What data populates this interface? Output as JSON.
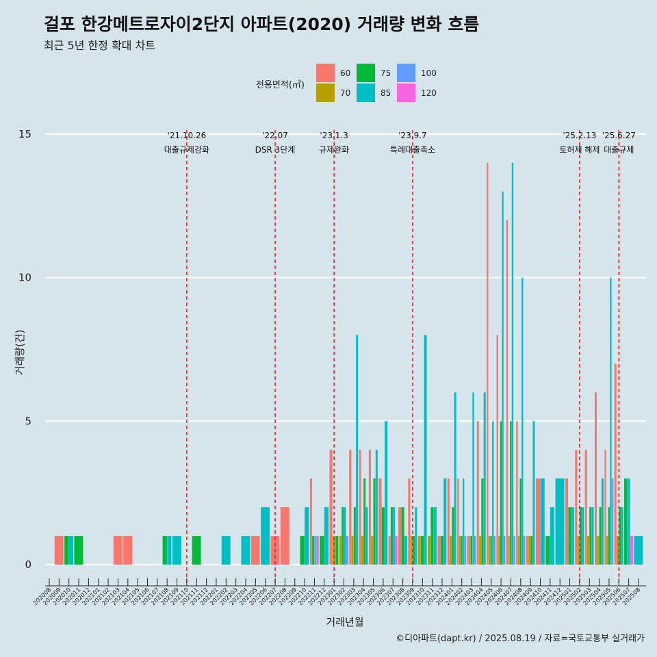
{
  "title": "걸포 한강메트로자이2단지 아파트(2020) 거래량 변화 흐름",
  "subtitle": "최근 5년 한정 확대 차트",
  "caption": "©디아파트(dapt.kr) / 2025.08.19 / 자료=국토교통부 실거래가",
  "colors": {
    "background": "#d6e4eb",
    "gridline": "#ffffff",
    "event_line": "#e41a1c",
    "s60": "#f8766d",
    "s70": "#b79f00",
    "s75": "#00ba38",
    "s85": "#00bfc4",
    "s100": "#619cff",
    "s120": "#f564e3"
  },
  "chart_data": {
    "type": "bar",
    "title": "걸포 한강메트로자이2단지 아파트(2020) 거래량 변화 흐름",
    "subtitle": "최근 5년 한정 확대 차트",
    "xlabel": "거래년월",
    "ylabel": "거래량(건)",
    "ylim": [
      0,
      15
    ],
    "yticks": [
      0,
      5,
      10,
      15
    ],
    "grid": true,
    "legend": {
      "title": "전용면적(㎡)",
      "position": "top",
      "entries": [
        "60",
        "70",
        "75",
        "85",
        "100",
        "120"
      ]
    },
    "categories": [
      "202008",
      "202009",
      "202010",
      "202011",
      "202012",
      "202101",
      "202102",
      "202103",
      "202104",
      "202105",
      "202106",
      "202107",
      "202108",
      "202109",
      "202110",
      "202111",
      "202112",
      "202201",
      "202202",
      "202203",
      "202204",
      "202205",
      "202206",
      "202207",
      "202208",
      "202209",
      "202210",
      "202211",
      "202212",
      "202301",
      "202302",
      "202303",
      "202304",
      "202305",
      "202306",
      "202307",
      "202308",
      "202309",
      "202310",
      "202311",
      "202312",
      "202401",
      "202402",
      "202403",
      "202404",
      "202405",
      "202406",
      "202407",
      "202408",
      "202409",
      "202410",
      "202411",
      "202412",
      "202501",
      "202502",
      "202503",
      "202504",
      "202505",
      "202506",
      "202507",
      "202508"
    ],
    "series": [
      {
        "name": "60",
        "values": [
          0,
          1,
          0,
          0,
          0,
          0,
          0,
          1,
          1,
          0,
          0,
          0,
          0,
          0,
          0,
          0,
          0,
          0,
          0,
          0,
          0,
          1,
          0,
          1,
          2,
          0,
          0,
          3,
          0,
          4,
          0,
          4,
          4,
          4,
          3,
          1,
          2,
          3,
          0,
          0,
          1,
          3,
          3,
          1,
          5,
          14,
          8,
          12,
          5,
          1,
          3,
          0,
          0,
          3,
          4,
          4,
          6,
          4,
          7,
          0,
          0
        ]
      },
      {
        "name": "70",
        "values": [
          0,
          0,
          0,
          0,
          0,
          0,
          0,
          0,
          0,
          0,
          0,
          0,
          0,
          0,
          0,
          0,
          0,
          0,
          0,
          0,
          0,
          0,
          0,
          0,
          0,
          0,
          0,
          0,
          0,
          1,
          1,
          1,
          1,
          1,
          0,
          0,
          0,
          1,
          1,
          1,
          0,
          1,
          1,
          1,
          1,
          1,
          1,
          1,
          1,
          1,
          0,
          0,
          0,
          0,
          1,
          1,
          1,
          1,
          1,
          0,
          0
        ]
      },
      {
        "name": "75",
        "values": [
          0,
          0,
          1,
          1,
          0,
          0,
          0,
          0,
          0,
          0,
          0,
          0,
          1,
          0,
          0,
          1,
          0,
          0,
          0,
          0,
          0,
          0,
          0,
          0,
          0,
          0,
          1,
          1,
          1,
          1,
          2,
          2,
          3,
          3,
          2,
          2,
          2,
          1,
          1,
          2,
          1,
          2,
          1,
          1,
          3,
          1,
          5,
          5,
          3,
          1,
          0,
          1,
          0,
          2,
          2,
          2,
          2,
          2,
          2,
          3,
          0
        ]
      },
      {
        "name": "85",
        "values": [
          0,
          0,
          1,
          0,
          0,
          0,
          0,
          0,
          0,
          0,
          0,
          0,
          1,
          1,
          0,
          0,
          0,
          0,
          1,
          0,
          1,
          0,
          2,
          0,
          0,
          0,
          2,
          0,
          2,
          0,
          2,
          8,
          2,
          4,
          5,
          2,
          1,
          2,
          8,
          2,
          3,
          6,
          3,
          6,
          6,
          5,
          13,
          14,
          10,
          5,
          3,
          2,
          3,
          2,
          2,
          2,
          3,
          10,
          2,
          3,
          1
        ]
      },
      {
        "name": "100",
        "values": [
          0,
          0,
          0,
          0,
          0,
          0,
          0,
          0,
          0,
          0,
          0,
          0,
          0,
          0,
          0,
          0,
          0,
          0,
          0,
          0,
          0,
          0,
          0,
          0,
          0,
          0,
          0,
          1,
          0,
          0,
          1,
          0,
          0,
          0,
          0,
          0,
          0,
          0,
          0,
          0,
          0,
          0,
          1,
          1,
          0,
          1,
          1,
          1,
          1,
          0,
          0,
          0,
          0,
          0,
          0,
          0,
          0,
          3,
          0,
          0,
          0
        ]
      },
      {
        "name": "120",
        "values": [
          0,
          0,
          0,
          0,
          0,
          0,
          0,
          0,
          0,
          0,
          0,
          0,
          0,
          0,
          0,
          0,
          0,
          0,
          0,
          0,
          0,
          0,
          0,
          0,
          0,
          0,
          0,
          1,
          0,
          0,
          0,
          0,
          0,
          0,
          0,
          1,
          0,
          0,
          0,
          0,
          0,
          0,
          0,
          0,
          0,
          0,
          0,
          0,
          0,
          0,
          0,
          0,
          0,
          0,
          0,
          0,
          0,
          0,
          0,
          1,
          0
        ]
      }
    ],
    "events": [
      {
        "date_label": "'21.10.26",
        "label": "대출규제강화",
        "position_month": "202110"
      },
      {
        "date_label": "'22.07",
        "label": "DSR 3단계",
        "position_month": "202207"
      },
      {
        "date_label": "'23.1.3",
        "label": "규제완화",
        "position_month": "202301"
      },
      {
        "date_label": "'23.9.7",
        "label": "특례대출축소",
        "position_month": "202309"
      },
      {
        "date_label": "'25.2.13",
        "label": "토허제 해제",
        "position_month": "202502"
      },
      {
        "date_label": "'25.6.27",
        "label": "대출규제",
        "position_month": "202506"
      }
    ]
  }
}
